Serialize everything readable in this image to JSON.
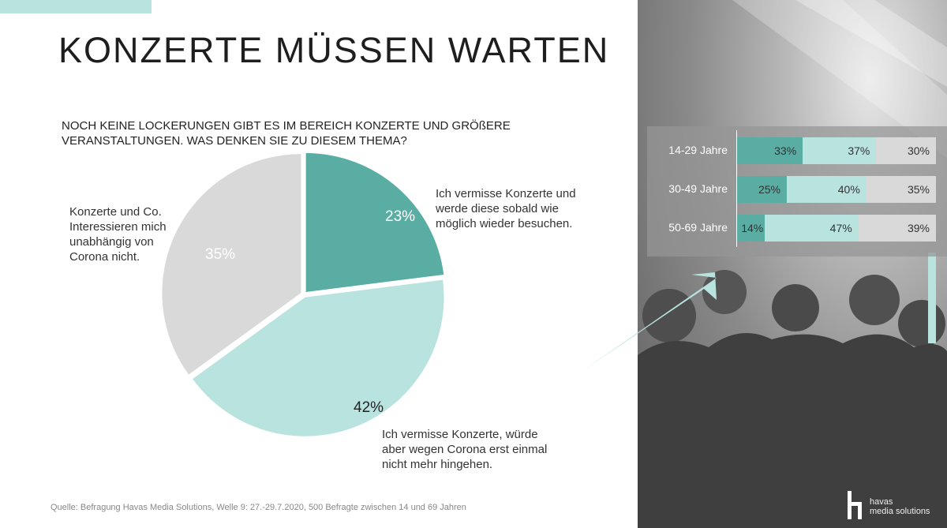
{
  "title": "KONZERTE MÜSSEN WARTEN",
  "question_line1": "NOCH KEINE LOCKERUNGEN GIBT ES IM BEREICH KONZERTE UND GRÖßERE",
  "question_line2": "VERANSTALTUNGEN. WAS DENKEN SIE ZU DIESEM THEMA?",
  "source": "Quelle: Befragung Havas Media Solutions, Welle 9: 27.-29.7.2020, 500 Befragte zwischen 14 und 69 Jahren",
  "colors": {
    "dark_teal": "#5aada3",
    "light_teal": "#b8e3df",
    "grey": "#d9d9d9",
    "accent": "#b8e3df"
  },
  "logo": {
    "line1": "havas",
    "line2": "media solutions"
  },
  "chart_data": [
    {
      "type": "pie",
      "slices": [
        {
          "value": 23,
          "label": "23%",
          "description": [
            "Ich vermisse Konzerte und",
            "werde diese sobald wie",
            "möglich wieder besuchen."
          ],
          "color": "#5aada3"
        },
        {
          "value": 42,
          "label": "42%",
          "description": [
            "Ich vermisse Konzerte, würde",
            "aber wegen Corona erst einmal",
            "nicht mehr hingehen."
          ],
          "color": "#b8e3df"
        },
        {
          "value": 35,
          "label": "35%",
          "description": [
            "Konzerte und Co.",
            "Interessieren mich",
            "unabhängig von",
            "Corona nicht."
          ],
          "color": "#d9d9d9"
        }
      ]
    },
    {
      "type": "bar",
      "orientation": "horizontal",
      "stacked": true,
      "categories": [
        "14-29 Jahre",
        "30-49 Jahre",
        "50-69 Jahre"
      ],
      "series": [
        {
          "values": [
            33,
            25,
            14
          ],
          "labels": [
            "33%",
            "25%",
            "14%"
          ],
          "color": "#5aada3"
        },
        {
          "values": [
            37,
            40,
            47
          ],
          "labels": [
            "37%",
            "40%",
            "47%"
          ],
          "color": "#b8e3df"
        },
        {
          "values": [
            30,
            35,
            39
          ],
          "labels": [
            "30%",
            "35%",
            "39%"
          ],
          "color": "#d9d9d9"
        }
      ]
    }
  ]
}
